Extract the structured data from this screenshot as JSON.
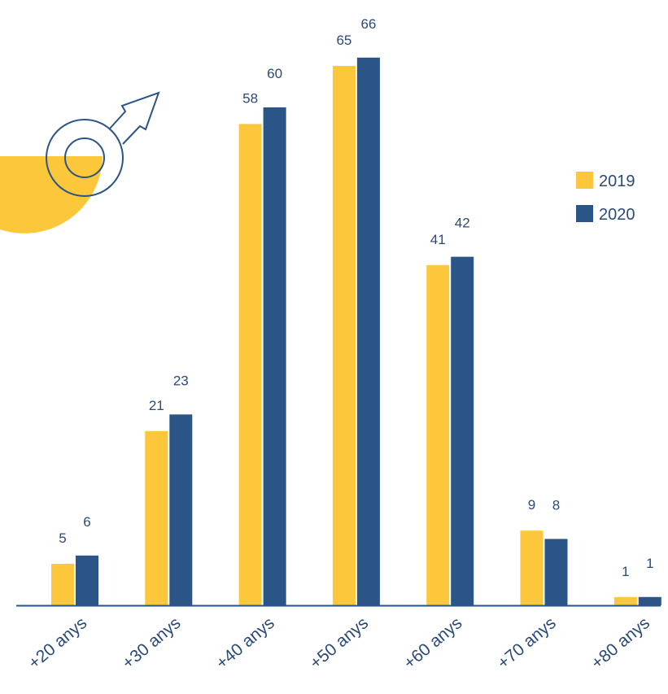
{
  "colors": {
    "accent_2019": "#fcc73a",
    "accent_2020": "#2b5487",
    "text": "#2a4a78",
    "axis": "#2b5487"
  },
  "decoration": {
    "icon": "male-symbol-icon",
    "blob": "yellow-half-circle"
  },
  "chart_data": {
    "type": "bar",
    "categories": [
      "+20 anys",
      "+30 anys",
      "+40 anys",
      "+50 anys",
      "+60 anys",
      "+70 anys",
      "+80 anys"
    ],
    "series": [
      {
        "name": "2019",
        "values": [
          5,
          21,
          58,
          65,
          41,
          9,
          1
        ]
      },
      {
        "name": "2020",
        "values": [
          6,
          23,
          60,
          66,
          42,
          8,
          1
        ]
      }
    ],
    "ylim": [
      0,
      70
    ],
    "grid": false,
    "legend_position": "right",
    "data_labels": true,
    "xlabel": "",
    "ylabel": ""
  }
}
